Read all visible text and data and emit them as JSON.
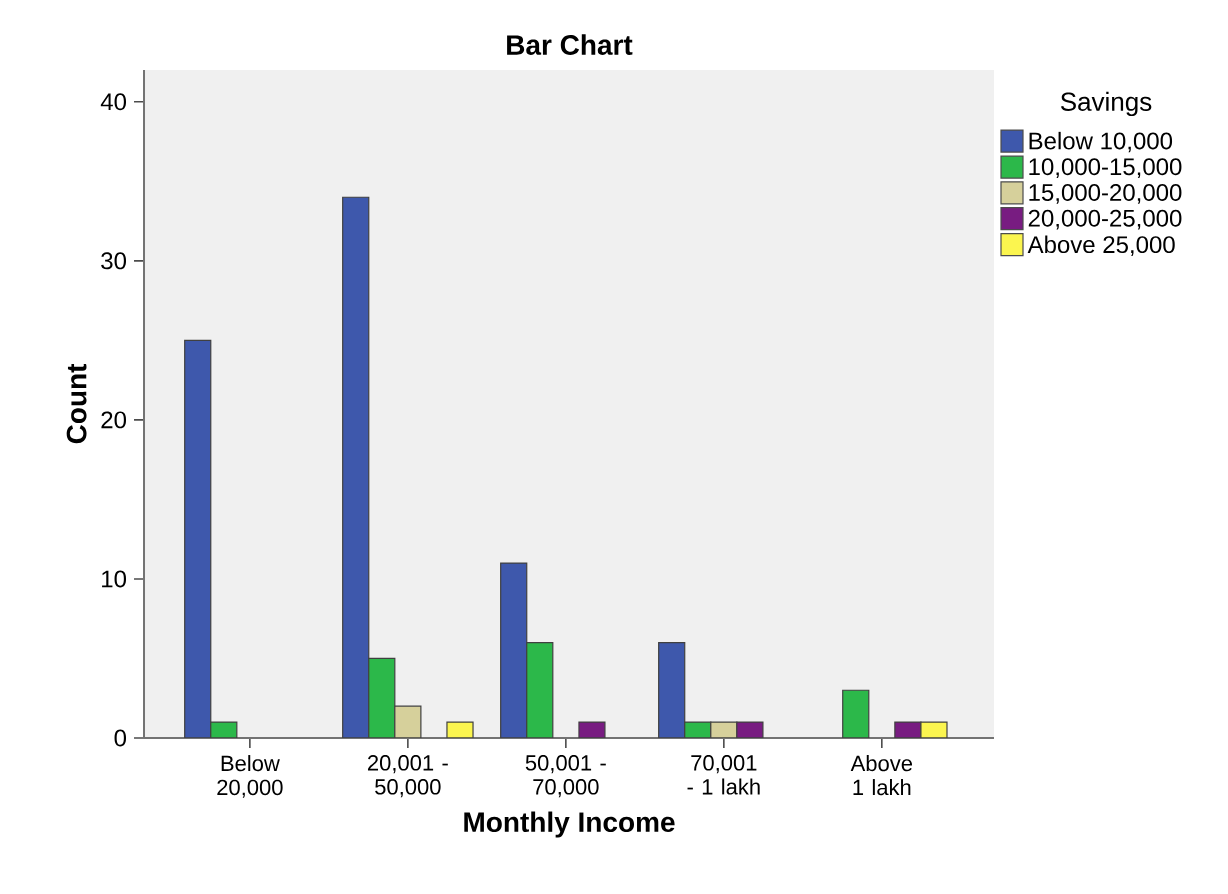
{
  "chart_data": {
    "type": "bar",
    "title": "Bar Chart",
    "xlabel": "Monthly Income",
    "ylabel": "Count",
    "legend_title": "Savings",
    "legend": "right",
    "categories": [
      "Below 20,000",
      "20,001 - 50,000",
      "50,001 - 70,000",
      "70,001 - 1 lakh",
      "Above 1 lakh"
    ],
    "ylim": [
      0,
      42
    ],
    "yticks": [
      0,
      10,
      20,
      30,
      40
    ],
    "grid": false,
    "series": [
      {
        "name": "Below 10,000",
        "color": "#3e58ac",
        "values": [
          25,
          34,
          11,
          6,
          null
        ]
      },
      {
        "name": "10,000-15,000",
        "color": "#2cb84a",
        "values": [
          1,
          5,
          6,
          1,
          3
        ]
      },
      {
        "name": "15,000-20,000",
        "color": "#d6d09b",
        "values": [
          null,
          2,
          null,
          1,
          null
        ]
      },
      {
        "name": "20,000-25,000",
        "color": "#781c81",
        "values": [
          null,
          null,
          1,
          1,
          1
        ]
      },
      {
        "name": "Above 25,000",
        "color": "#fbf54f",
        "values": [
          null,
          1,
          null,
          null,
          1
        ]
      }
    ]
  }
}
